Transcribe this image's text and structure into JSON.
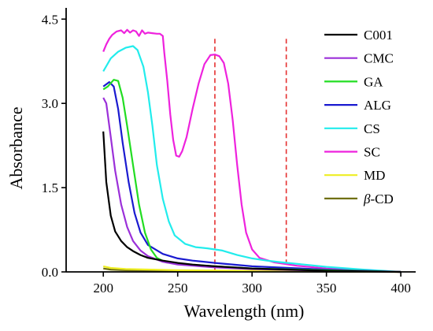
{
  "chart_data": {
    "type": "line",
    "xlabel": "Wavelength (nm)",
    "ylabel": "Absorbance",
    "xlim": [
      175,
      410
    ],
    "ylim": [
      0,
      4.7
    ],
    "x_ticks": [
      {
        "value": 200,
        "label": "200"
      },
      {
        "value": 250,
        "label": "250"
      },
      {
        "value": 300,
        "label": "300"
      },
      {
        "value": 350,
        "label": "350"
      },
      {
        "value": 400,
        "label": "400"
      }
    ],
    "y_ticks": [
      {
        "value": 0.0,
        "label": "0.0"
      },
      {
        "value": 1.5,
        "label": "1.5"
      },
      {
        "value": 3.0,
        "label": "3.0"
      },
      {
        "value": 4.5,
        "label": "4.5"
      }
    ],
    "reference_lines": [
      {
        "x": 275,
        "color": "#e53030",
        "style": "dashed"
      },
      {
        "x": 323,
        "color": "#e53030",
        "style": "dashed"
      }
    ],
    "grid": false,
    "legend_position": "top-right",
    "series": [
      {
        "name": "C001",
        "color": "#000000",
        "points": [
          [
            200,
            2.5
          ],
          [
            202,
            1.6
          ],
          [
            205,
            1.0
          ],
          [
            208,
            0.72
          ],
          [
            212,
            0.55
          ],
          [
            216,
            0.44
          ],
          [
            220,
            0.37
          ],
          [
            225,
            0.3
          ],
          [
            230,
            0.25
          ],
          [
            240,
            0.2
          ],
          [
            250,
            0.16
          ],
          [
            260,
            0.13
          ],
          [
            275,
            0.1
          ],
          [
            300,
            0.06
          ],
          [
            325,
            0.04
          ],
          [
            350,
            0.02
          ],
          [
            400,
            0.0
          ]
        ]
      },
      {
        "name": "CMC",
        "color": "#9b30d9",
        "points": [
          [
            200,
            3.1
          ],
          [
            202,
            3.0
          ],
          [
            205,
            2.4
          ],
          [
            208,
            1.8
          ],
          [
            212,
            1.2
          ],
          [
            216,
            0.8
          ],
          [
            220,
            0.55
          ],
          [
            225,
            0.38
          ],
          [
            230,
            0.28
          ],
          [
            240,
            0.18
          ],
          [
            250,
            0.13
          ],
          [
            275,
            0.08
          ],
          [
            300,
            0.05
          ],
          [
            350,
            0.02
          ],
          [
            400,
            0.0
          ]
        ]
      },
      {
        "name": "GA",
        "color": "#22dd22",
        "points": [
          [
            200,
            3.25
          ],
          [
            203,
            3.3
          ],
          [
            207,
            3.42
          ],
          [
            210,
            3.4
          ],
          [
            213,
            3.1
          ],
          [
            216,
            2.6
          ],
          [
            220,
            1.9
          ],
          [
            224,
            1.2
          ],
          [
            228,
            0.7
          ],
          [
            232,
            0.4
          ],
          [
            236,
            0.25
          ],
          [
            242,
            0.17
          ],
          [
            250,
            0.14
          ],
          [
            275,
            0.1
          ],
          [
            300,
            0.06
          ],
          [
            350,
            0.03
          ],
          [
            400,
            0.0
          ]
        ]
      },
      {
        "name": "ALG",
        "color": "#1a1ad0",
        "points": [
          [
            200,
            3.3
          ],
          [
            204,
            3.38
          ],
          [
            207,
            3.3
          ],
          [
            210,
            2.9
          ],
          [
            213,
            2.3
          ],
          [
            217,
            1.6
          ],
          [
            221,
            1.05
          ],
          [
            225,
            0.7
          ],
          [
            230,
            0.48
          ],
          [
            240,
            0.32
          ],
          [
            250,
            0.24
          ],
          [
            260,
            0.2
          ],
          [
            275,
            0.16
          ],
          [
            300,
            0.1
          ],
          [
            325,
            0.07
          ],
          [
            350,
            0.04
          ],
          [
            400,
            0.0
          ]
        ]
      },
      {
        "name": "CS",
        "color": "#22ecec",
        "points": [
          [
            200,
            3.57
          ],
          [
            205,
            3.8
          ],
          [
            210,
            3.92
          ],
          [
            215,
            3.99
          ],
          [
            220,
            4.02
          ],
          [
            223,
            3.95
          ],
          [
            227,
            3.65
          ],
          [
            230,
            3.2
          ],
          [
            233,
            2.6
          ],
          [
            236,
            1.9
          ],
          [
            240,
            1.3
          ],
          [
            244,
            0.9
          ],
          [
            248,
            0.65
          ],
          [
            255,
            0.5
          ],
          [
            262,
            0.44
          ],
          [
            270,
            0.42
          ],
          [
            280,
            0.38
          ],
          [
            290,
            0.3
          ],
          [
            300,
            0.24
          ],
          [
            310,
            0.2
          ],
          [
            320,
            0.17
          ],
          [
            335,
            0.13
          ],
          [
            350,
            0.09
          ],
          [
            375,
            0.04
          ],
          [
            400,
            0.0
          ]
        ]
      },
      {
        "name": "SC",
        "color": "#ee22dd",
        "points": [
          [
            200,
            3.92
          ],
          [
            202,
            4.05
          ],
          [
            204,
            4.15
          ],
          [
            206,
            4.22
          ],
          [
            209,
            4.28
          ],
          [
            212,
            4.3
          ],
          [
            214,
            4.25
          ],
          [
            216,
            4.31
          ],
          [
            218,
            4.26
          ],
          [
            220,
            4.3
          ],
          [
            222,
            4.28
          ],
          [
            224,
            4.2
          ],
          [
            226,
            4.3
          ],
          [
            228,
            4.24
          ],
          [
            230,
            4.26
          ],
          [
            233,
            4.25
          ],
          [
            236,
            4.24
          ],
          [
            238,
            4.24
          ],
          [
            240,
            4.2
          ],
          [
            241,
            3.9
          ],
          [
            243,
            3.4
          ],
          [
            245,
            2.8
          ],
          [
            247,
            2.35
          ],
          [
            249,
            2.07
          ],
          [
            251,
            2.05
          ],
          [
            253,
            2.15
          ],
          [
            256,
            2.4
          ],
          [
            260,
            2.9
          ],
          [
            264,
            3.35
          ],
          [
            268,
            3.7
          ],
          [
            272,
            3.86
          ],
          [
            275,
            3.87
          ],
          [
            278,
            3.84
          ],
          [
            281,
            3.72
          ],
          [
            284,
            3.35
          ],
          [
            287,
            2.7
          ],
          [
            290,
            1.9
          ],
          [
            293,
            1.2
          ],
          [
            296,
            0.7
          ],
          [
            300,
            0.4
          ],
          [
            305,
            0.25
          ],
          [
            315,
            0.17
          ],
          [
            330,
            0.11
          ],
          [
            350,
            0.06
          ],
          [
            375,
            0.02
          ],
          [
            400,
            0.0
          ]
        ]
      },
      {
        "name": "MD",
        "color": "#eeee22",
        "points": [
          [
            200,
            0.1
          ],
          [
            205,
            0.07
          ],
          [
            215,
            0.05
          ],
          [
            250,
            0.03
          ],
          [
            300,
            0.02
          ],
          [
            350,
            0.01
          ],
          [
            400,
            0.0
          ]
        ]
      },
      {
        "name": "β-CD",
        "color": "#707010",
        "points": [
          [
            200,
            0.06
          ],
          [
            205,
            0.04
          ],
          [
            215,
            0.03
          ],
          [
            250,
            0.02
          ],
          [
            300,
            0.01
          ],
          [
            350,
            0.005
          ],
          [
            400,
            0.0
          ]
        ]
      }
    ]
  }
}
